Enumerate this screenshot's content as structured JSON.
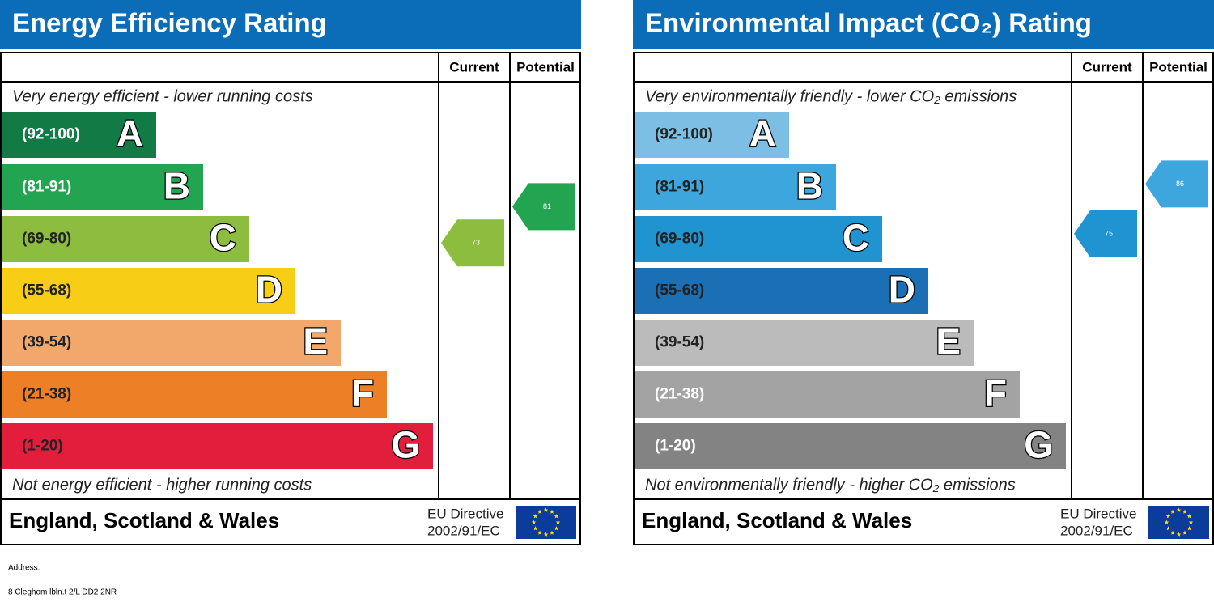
{
  "panels": [
    {
      "title": "Energy Efficiency Rating",
      "headers": [
        "Current",
        "Potential"
      ],
      "top_text": "Very energy efficient - lower running costs",
      "bottom_text": "Not energy efficient - higher running costs",
      "bands": [
        {
          "range": "(92-100)",
          "letter": "A",
          "color": "#117a45",
          "text_color": "#ffffff"
        },
        {
          "range": "(81-91)",
          "letter": "B",
          "color": "#23a450",
          "text_color": "#ffffff"
        },
        {
          "range": "(69-80)",
          "letter": "C",
          "color": "#8dbd3e",
          "text_color": "#222222"
        },
        {
          "range": "(55-68)",
          "letter": "D",
          "color": "#f8cd16",
          "text_color": "#222222"
        },
        {
          "range": "(39-54)",
          "letter": "E",
          "color": "#f2a86b",
          "text_color": "#222222"
        },
        {
          "range": "(21-38)",
          "letter": "F",
          "color": "#ed7f26",
          "text_color": "#222222"
        },
        {
          "range": "(1-20)",
          "letter": "G",
          "color": "#e31d3c",
          "text_color": "#222222"
        }
      ],
      "current": {
        "value": 73,
        "color": "#8dbd3e"
      },
      "potential": {
        "value": 81,
        "color": "#23a450"
      },
      "footer": "England, Scotland & Wales",
      "directive": [
        "EU Directive",
        "2002/91/EC"
      ]
    },
    {
      "title": "Environmental Impact (CO₂) Rating",
      "headers": [
        "Current",
        "Potential"
      ],
      "top_text": "Very environmentally friendly - lower CO₂ emissions",
      "bottom_text": "Not environmentally friendly - higher CO₂ emissions",
      "bands": [
        {
          "range": "(92-100)",
          "letter": "A",
          "color": "#7dbfe4",
          "text_color": "#222222"
        },
        {
          "range": "(81-91)",
          "letter": "B",
          "color": "#3da6dc",
          "text_color": "#222222"
        },
        {
          "range": "(69-80)",
          "letter": "C",
          "color": "#2093d1",
          "text_color": "#222222"
        },
        {
          "range": "(55-68)",
          "letter": "D",
          "color": "#1a6fb5",
          "text_color": "#222222"
        },
        {
          "range": "(39-54)",
          "letter": "E",
          "color": "#bbbbbb",
          "text_color": "#222222"
        },
        {
          "range": "(21-38)",
          "letter": "F",
          "color": "#a3a3a3",
          "text_color": "#ffffff"
        },
        {
          "range": "(1-20)",
          "letter": "G",
          "color": "#838383",
          "text_color": "#ffffff"
        }
      ],
      "current": {
        "value": 75,
        "color": "#2093d1"
      },
      "potential": {
        "value": 86,
        "color": "#3da6dc"
      },
      "footer": "England, Scotland & Wales",
      "directive": [
        "EU Directive",
        "2002/91/EC"
      ]
    }
  ],
  "address": {
    "label": "Address:",
    "text": "8 Cleghom lbln.t 2/L DD2 2NR"
  }
}
